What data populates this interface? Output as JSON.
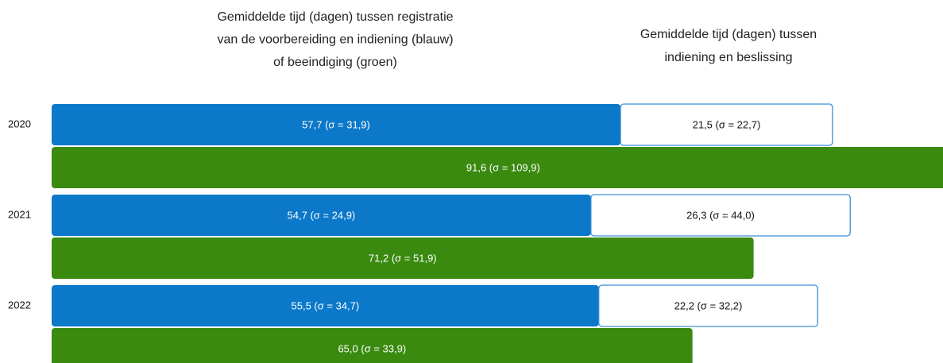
{
  "chart_data": {
    "type": "bar",
    "title_left": [
      "Gemiddelde tijd (dagen) tussen registratie",
      "van de voorbereiding en indiening (blauw)",
      "of beeindiging (groen)"
    ],
    "title_right": [
      "Gemiddelde tijd (dagen) tussen",
      "indiening en beslissing"
    ],
    "categories": [
      "2020",
      "2021",
      "2022"
    ],
    "series": [
      {
        "color": "#0b78c9",
        "values": [
          57.7,
          54.7,
          55.5
        ],
        "value_labels": [
          "57,7 (σ = 31,9)",
          "54,7 (σ = 24,9)",
          "55,5 (σ = 34,7)"
        ]
      },
      {
        "color": "#ffffff",
        "values": [
          21.5,
          26.3,
          22.2
        ],
        "value_labels": [
          "21,5 (σ = 22,7)",
          "26,3 (σ = 44,0)",
          "22,2 (σ = 32,2)"
        ]
      },
      {
        "color": "#3a8a10",
        "values": [
          91.6,
          71.2,
          65.0
        ],
        "value_labels": [
          "91,6 (σ = 109,9)",
          "71,2 (σ = 51,9)",
          "65,0 (σ = 33,9)"
        ]
      }
    ]
  }
}
